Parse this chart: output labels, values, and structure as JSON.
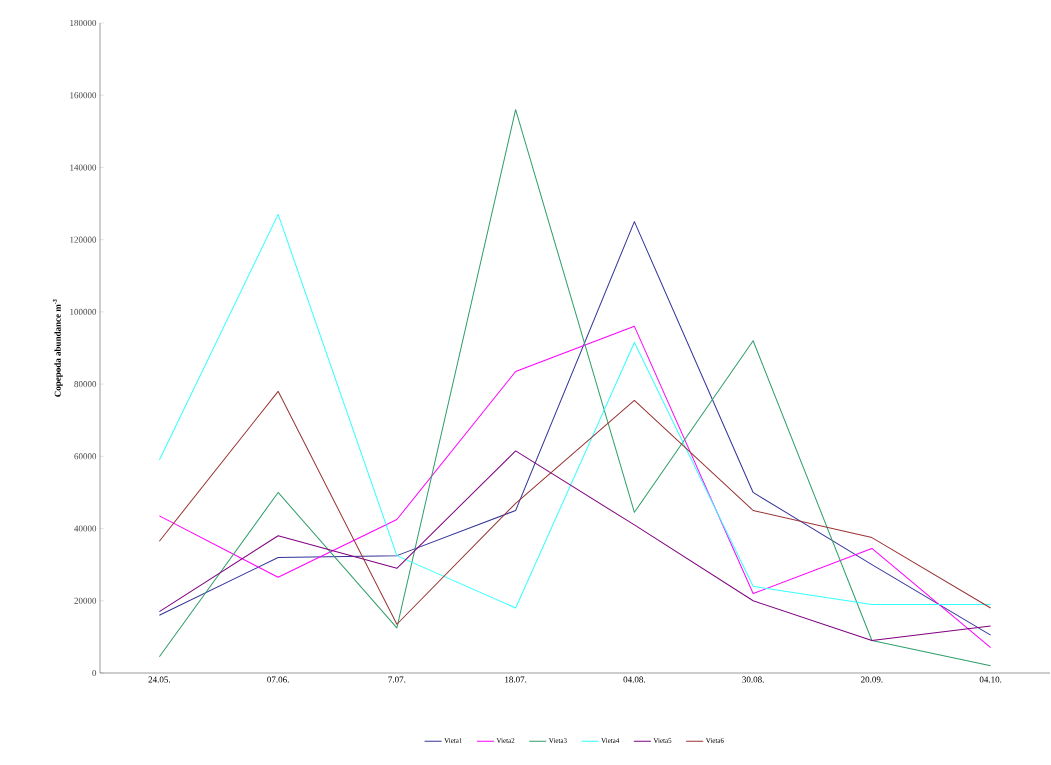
{
  "chart_data": {
    "type": "line",
    "ylabel": "Copepoda abundance m$^{-3}$",
    "categories": [
      "24.05.",
      "07.06.",
      "7.07.",
      "18.07.",
      "04.08.",
      "30.08.",
      "20.09.",
      "04.10."
    ],
    "series": [
      {
        "name": "Vieta1",
        "color": "#333399",
        "values": [
          16000,
          32000,
          32500,
          45000,
          125000,
          50000,
          30000,
          10500
        ]
      },
      {
        "name": "Vieta2",
        "color": "#ff00ff",
        "values": [
          43500,
          26500,
          42500,
          83500,
          96000,
          22000,
          34500,
          7000
        ]
      },
      {
        "name": "Vieta3",
        "color": "#2e9e6a",
        "values": [
          4500,
          50000,
          12500,
          156000,
          44500,
          92000,
          9000,
          2000
        ]
      },
      {
        "name": "Vieta4",
        "color": "#33ffff",
        "values": [
          59000,
          127000,
          32500,
          18000,
          91500,
          24000,
          19000,
          19000
        ]
      },
      {
        "name": "Vieta5",
        "color": "#800080",
        "values": [
          17000,
          38000,
          29000,
          61500,
          41000,
          20000,
          9000,
          13000
        ]
      },
      {
        "name": "Vieta6",
        "color": "#993333",
        "values": [
          36500,
          78000,
          13500,
          47000,
          75500,
          45000,
          37500,
          18000
        ]
      }
    ],
    "ylim": [
      0,
      180000
    ],
    "yticks": [
      0,
      20000,
      40000,
      60000,
      80000,
      100000,
      120000,
      140000,
      160000,
      180000
    ],
    "grid": false,
    "legend": "bottom",
    "marker": "none",
    "line_style": "solid"
  }
}
